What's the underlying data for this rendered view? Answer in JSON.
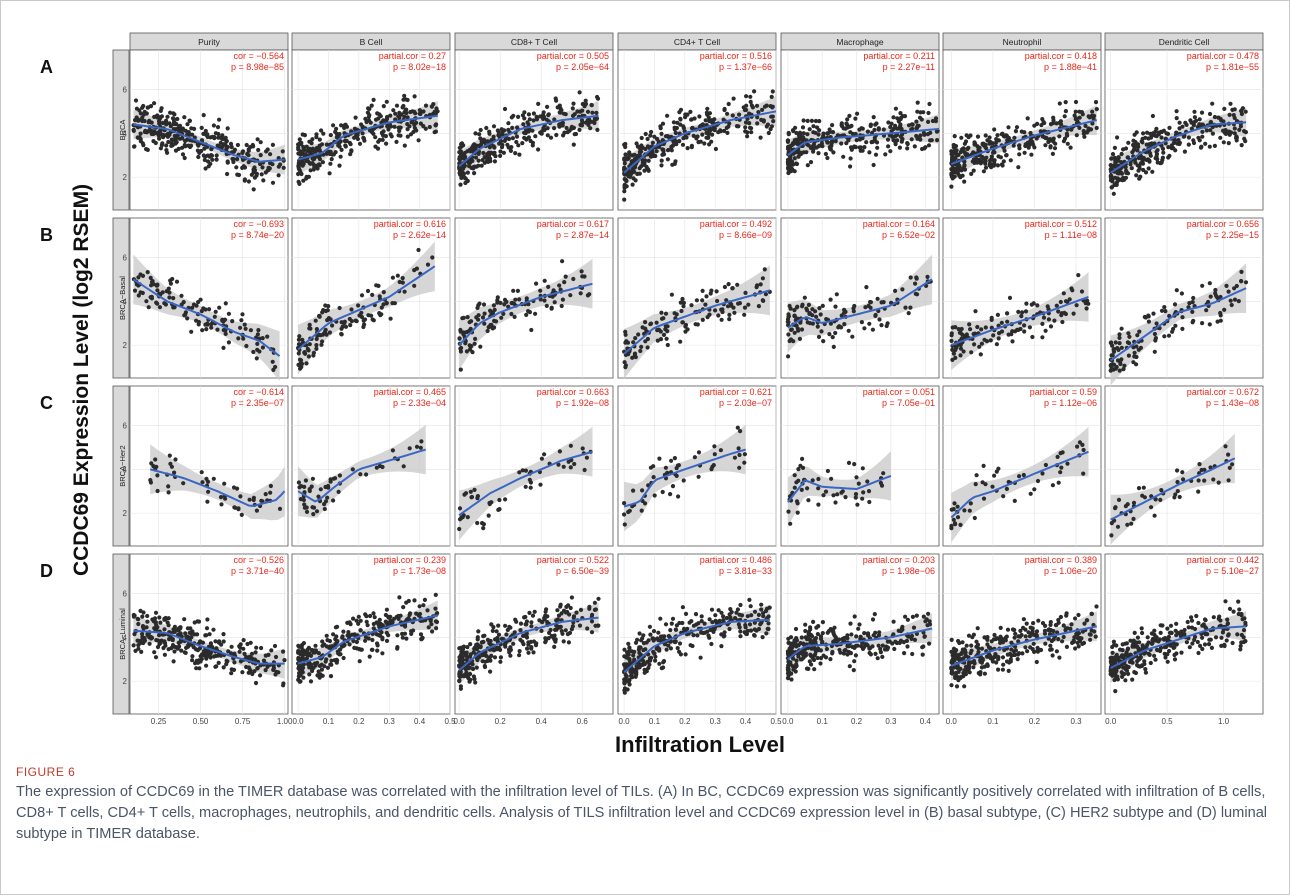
{
  "figure": {
    "y_axis_label": "CCDC69 Expression Level (log2 RSEM)",
    "x_axis_label": "Infiltration Level",
    "caption_label": "FIGURE 6",
    "caption": "The expression of CCDC69 in the TIMER database was correlated with the infiltration level of TILs. (A) In BC, CCDC69 expression was significantly positively correlated with infiltration of B cells, CD8+ T cells, CD4+ T cells, macrophages, neutrophils, and dendritic cells. Analysis of TILS infiltration level and CCDC69 expression level in (B) basal subtype, (C) HER2 subtype and (D) luminal subtype in TIMER database.",
    "colors": {
      "points": "#2b2b2b",
      "fit": "#3a66c4",
      "band": "#c8c8c8",
      "stats": "#e8261a",
      "strip": "#d9d9d9"
    }
  },
  "chart_data": {
    "type": "scatter",
    "x_label": "Infiltration Level",
    "y_label": "CCDC69 Expression Level (log2 RSEM)",
    "columns": [
      "Purity",
      "B Cell",
      "CD8+ T Cell",
      "CD4+ T Cell",
      "Macrophage",
      "Neutrophil",
      "Dendritic Cell"
    ],
    "x_ticks": [
      [
        "0.25",
        "0.50",
        "0.75",
        "1.00"
      ],
      [
        "0.0",
        "0.1",
        "0.2",
        "0.3",
        "0.4",
        "0.5"
      ],
      [
        "0.0",
        "0.2",
        "0.4",
        "0.6"
      ],
      [
        "0.0",
        "0.1",
        "0.2",
        "0.3",
        "0.4",
        "0.5"
      ],
      [
        "0.0",
        "0.1",
        "0.2",
        "0.3",
        "0.4"
      ],
      [
        "0.0",
        "0.1",
        "0.2",
        "0.3"
      ],
      [
        "0.0",
        "0.5",
        "1.0"
      ]
    ],
    "y_ticks": [
      [
        "2",
        "4",
        "6"
      ],
      [
        "2",
        "4",
        "6"
      ],
      [
        "2",
        "4",
        "6"
      ],
      [
        "2",
        "4",
        "6"
      ]
    ],
    "rows": [
      {
        "panel": "A",
        "subtype": "BRCA",
        "stats": [
          [
            "cor = −0.564",
            "p = 8.98e−85"
          ],
          [
            "partial.cor = 0.27",
            "p = 8.02e−18"
          ],
          [
            "partial.cor = 0.505",
            "p = 2.05e−64"
          ],
          [
            "partial.cor = 0.516",
            "p = 1.37e−66"
          ],
          [
            "partial.cor = 0.211",
            "p = 2.27e−11"
          ],
          [
            "partial.cor = 0.418",
            "p = 1.88e−41"
          ],
          [
            "partial.cor = 0.478",
            "p = 1.81e−55"
          ]
        ],
        "fits": [
          [
            [
              0.1,
              4.4
            ],
            [
              0.3,
              4.2
            ],
            [
              0.5,
              3.6
            ],
            [
              0.7,
              3.0
            ],
            [
              0.85,
              2.7
            ],
            [
              1.0,
              2.8
            ]
          ],
          [
            [
              0.0,
              2.8
            ],
            [
              0.08,
              3.1
            ],
            [
              0.15,
              3.9
            ],
            [
              0.3,
              4.5
            ],
            [
              0.46,
              4.8
            ]
          ],
          [
            [
              0.0,
              2.5
            ],
            [
              0.1,
              3.3
            ],
            [
              0.3,
              4.2
            ],
            [
              0.5,
              4.6
            ],
            [
              0.68,
              4.8
            ]
          ],
          [
            [
              0.0,
              2.2
            ],
            [
              0.1,
              3.4
            ],
            [
              0.2,
              4.0
            ],
            [
              0.35,
              4.6
            ],
            [
              0.5,
              5.0
            ]
          ],
          [
            [
              0.0,
              3.0
            ],
            [
              0.05,
              3.6
            ],
            [
              0.15,
              3.8
            ],
            [
              0.3,
              4.0
            ],
            [
              0.44,
              4.2
            ]
          ],
          [
            [
              0.0,
              2.6
            ],
            [
              0.1,
              3.3
            ],
            [
              0.2,
              3.9
            ],
            [
              0.35,
              4.6
            ]
          ],
          [
            [
              0.0,
              2.2
            ],
            [
              0.3,
              3.2
            ],
            [
              0.6,
              3.9
            ],
            [
              0.9,
              4.4
            ],
            [
              1.2,
              4.5
            ]
          ]
        ],
        "n_points": 320
      },
      {
        "panel": "B",
        "subtype": "BRCA−Basal",
        "stats": [
          [
            "cor = −0.693",
            "p = 8.74e−20"
          ],
          [
            "partial.cor = 0.616",
            "p = 2.62e−14"
          ],
          [
            "partial.cor = 0.617",
            "p = 2.87e−14"
          ],
          [
            "partial.cor = 0.492",
            "p = 8.66e−09"
          ],
          [
            "partial.cor = 0.164",
            "p = 6.52e−02"
          ],
          [
            "partial.cor = 0.512",
            "p = 1.11e−08"
          ],
          [
            "partial.cor = 0.656",
            "p = 2.25e−15"
          ]
        ],
        "fits": [
          [
            [
              0.1,
              5.0
            ],
            [
              0.3,
              4.0
            ],
            [
              0.5,
              3.4
            ],
            [
              0.7,
              2.6
            ],
            [
              0.85,
              2.2
            ],
            [
              0.97,
              1.5
            ]
          ],
          [
            [
              0.0,
              1.8
            ],
            [
              0.1,
              3.0
            ],
            [
              0.2,
              3.6
            ],
            [
              0.3,
              4.2
            ],
            [
              0.45,
              5.6
            ]
          ],
          [
            [
              0.0,
              2.0
            ],
            [
              0.1,
              3.0
            ],
            [
              0.2,
              3.5
            ],
            [
              0.4,
              4.2
            ],
            [
              0.65,
              4.8
            ]
          ],
          [
            [
              0.0,
              1.6
            ],
            [
              0.1,
              2.8
            ],
            [
              0.2,
              3.3
            ],
            [
              0.3,
              3.8
            ],
            [
              0.48,
              4.5
            ]
          ],
          [
            [
              0.0,
              2.8
            ],
            [
              0.05,
              3.3
            ],
            [
              0.1,
              3.0
            ],
            [
              0.2,
              3.4
            ],
            [
              0.3,
              3.8
            ],
            [
              0.42,
              5.0
            ]
          ],
          [
            [
              0.0,
              2.0
            ],
            [
              0.1,
              2.7
            ],
            [
              0.2,
              3.3
            ],
            [
              0.33,
              4.2
            ]
          ],
          [
            [
              0.0,
              1.3
            ],
            [
              0.3,
              2.4
            ],
            [
              0.6,
              3.5
            ],
            [
              0.9,
              3.9
            ],
            [
              1.2,
              4.6
            ]
          ]
        ],
        "n_points": 130
      },
      {
        "panel": "C",
        "subtype": "BRCA−Her2",
        "stats": [
          [
            "cor = −0.614",
            "p = 2.35e−07"
          ],
          [
            "partial.cor = 0.465",
            "p = 2.33e−04"
          ],
          [
            "partial.cor = 0.663",
            "p = 1.92e−08"
          ],
          [
            "partial.cor = 0.621",
            "p = 2.03e−07"
          ],
          [
            "partial.cor = 0.051",
            "p = 7.05e−01"
          ],
          [
            "partial.cor = 0.59",
            "p = 1.12e−06"
          ],
          [
            "partial.cor = 0.672",
            "p = 1.43e−08"
          ]
        ],
        "fits": [
          [
            [
              0.2,
              4.0
            ],
            [
              0.4,
              3.6
            ],
            [
              0.6,
              3.0
            ],
            [
              0.8,
              2.3
            ],
            [
              0.95,
              2.6
            ],
            [
              1.0,
              3.0
            ]
          ],
          [
            [
              0.0,
              3.0
            ],
            [
              0.06,
              2.5
            ],
            [
              0.12,
              3.2
            ],
            [
              0.2,
              4.0
            ],
            [
              0.3,
              4.4
            ],
            [
              0.42,
              4.9
            ]
          ],
          [
            [
              0.0,
              1.9
            ],
            [
              0.15,
              2.9
            ],
            [
              0.3,
              3.6
            ],
            [
              0.5,
              4.4
            ],
            [
              0.65,
              4.8
            ]
          ],
          [
            [
              0.0,
              2.3
            ],
            [
              0.05,
              2.5
            ],
            [
              0.1,
              3.5
            ],
            [
              0.2,
              4.0
            ],
            [
              0.35,
              4.7
            ],
            [
              0.4,
              4.9
            ]
          ],
          [
            [
              0.0,
              2.5
            ],
            [
              0.05,
              3.5
            ],
            [
              0.1,
              3.2
            ],
            [
              0.2,
              3.1
            ],
            [
              0.3,
              3.7
            ]
          ],
          [
            [
              0.0,
              1.8
            ],
            [
              0.05,
              2.7
            ],
            [
              0.1,
              3.0
            ],
            [
              0.2,
              3.8
            ],
            [
              0.33,
              4.8
            ]
          ],
          [
            [
              0.0,
              1.7
            ],
            [
              0.3,
              2.5
            ],
            [
              0.6,
              3.3
            ],
            [
              0.9,
              4.0
            ],
            [
              1.1,
              4.5
            ]
          ]
        ],
        "n_points": 55
      },
      {
        "panel": "D",
        "subtype": "BRCA−Luminal",
        "stats": [
          [
            "cor = −0.526",
            "p = 3.71e−40"
          ],
          [
            "partial.cor = 0.239",
            "p = 1.73e−08"
          ],
          [
            "partial.cor = 0.522",
            "p = 6.50e−39"
          ],
          [
            "partial.cor = 0.486",
            "p = 3.81e−33"
          ],
          [
            "partial.cor = 0.203",
            "p = 1.98e−06"
          ],
          [
            "partial.cor = 0.389",
            "p = 1.06e−20"
          ],
          [
            "partial.cor = 0.442",
            "p = 5.10e−27"
          ]
        ],
        "fits": [
          [
            [
              0.1,
              4.3
            ],
            [
              0.3,
              4.2
            ],
            [
              0.5,
              3.6
            ],
            [
              0.7,
              3.1
            ],
            [
              0.85,
              2.8
            ],
            [
              1.0,
              2.8
            ]
          ],
          [
            [
              0.0,
              2.8
            ],
            [
              0.08,
              3.1
            ],
            [
              0.15,
              3.8
            ],
            [
              0.3,
              4.5
            ],
            [
              0.46,
              5.0
            ]
          ],
          [
            [
              0.0,
              2.5
            ],
            [
              0.1,
              3.3
            ],
            [
              0.3,
              4.2
            ],
            [
              0.5,
              4.7
            ],
            [
              0.68,
              4.9
            ]
          ],
          [
            [
              0.0,
              2.4
            ],
            [
              0.1,
              3.6
            ],
            [
              0.2,
              4.2
            ],
            [
              0.35,
              4.7
            ],
            [
              0.48,
              4.8
            ]
          ],
          [
            [
              0.0,
              3.0
            ],
            [
              0.05,
              3.6
            ],
            [
              0.15,
              3.7
            ],
            [
              0.3,
              4.0
            ],
            [
              0.42,
              4.4
            ]
          ],
          [
            [
              0.0,
              2.7
            ],
            [
              0.1,
              3.4
            ],
            [
              0.2,
              3.9
            ],
            [
              0.35,
              4.5
            ]
          ],
          [
            [
              0.0,
              2.6
            ],
            [
              0.3,
              3.4
            ],
            [
              0.6,
              3.9
            ],
            [
              0.9,
              4.4
            ],
            [
              1.2,
              4.5
            ]
          ]
        ],
        "n_points": 300
      }
    ]
  }
}
